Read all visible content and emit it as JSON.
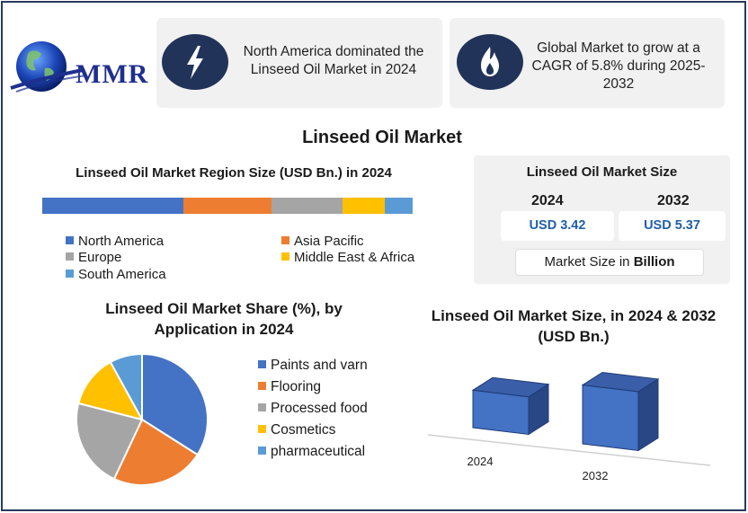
{
  "brand": {
    "logo_text": "MMR"
  },
  "cards": [
    {
      "icon": "lightning-icon",
      "text": "North America dominated the Linseed Oil Market in 2024"
    },
    {
      "icon": "flame-icon",
      "text": "Global Market to grow at a CAGR of 5.8% during 2025-2032"
    }
  ],
  "main_title": "Linseed Oil Market",
  "region": {
    "title": "Linseed Oil Market Region Size (USD Bn.) in 2024",
    "legend": [
      {
        "label": "North America",
        "color": "#4472c4",
        "share": 0.38
      },
      {
        "label": "Asia Pacific",
        "color": "#ed7d31",
        "share": 0.24
      },
      {
        "label": "Europe",
        "color": "#a5a5a5",
        "share": 0.19
      },
      {
        "label": "Middle East & Africa",
        "color": "#ffc000",
        "share": 0.115
      },
      {
        "label": "South America",
        "color": "#5b9bd5",
        "share": 0.075
      }
    ]
  },
  "market_size": {
    "title": "Linseed Oil Market Size",
    "years": [
      "2024",
      "2032"
    ],
    "values": [
      "USD 3.42",
      "USD 5.37"
    ],
    "unit_prefix": "Market Size in ",
    "unit_bold": "Billion"
  },
  "chart_data": [
    {
      "type": "bar",
      "title": "Linseed Oil Market Region Size (USD Bn.) in 2024",
      "stacked": true,
      "orientation": "horizontal",
      "categories": [
        "North America",
        "Asia Pacific",
        "Europe",
        "Middle East & Africa",
        "South America"
      ],
      "values": [
        0.38,
        0.24,
        0.19,
        0.115,
        0.075
      ]
    },
    {
      "type": "pie",
      "title": "Linseed Oil Market Share (%), by Application in 2024",
      "categories": [
        "Paints and varn",
        "Flooring",
        "Processed food",
        "Cosmetics",
        "pharmaceutical"
      ],
      "values": [
        34,
        23,
        22,
        13,
        8
      ],
      "colors": [
        "#4472c4",
        "#ed7d31",
        "#a5a5a5",
        "#ffc000",
        "#5b9bd5"
      ]
    },
    {
      "type": "bar",
      "title": "Linseed Oil Market  Size, in 2024 & 2032 (USD Bn.)",
      "categories": [
        "2024",
        "2032"
      ],
      "values": [
        3.42,
        5.37
      ],
      "color": "#4472c4"
    }
  ],
  "pie": {
    "title": "Linseed Oil Market Share (%), by Application in 2024"
  },
  "bar3d": {
    "title": "Linseed Oil Market  Size, in 2024 & 2032 (USD Bn.)"
  }
}
